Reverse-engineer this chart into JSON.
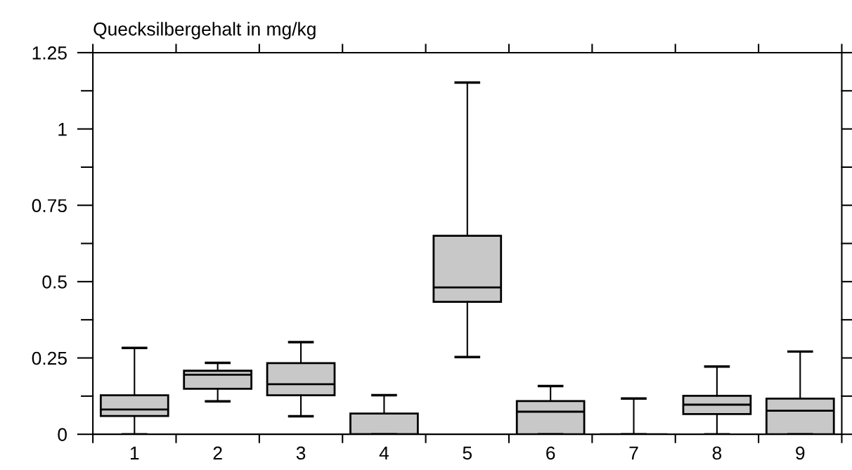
{
  "chart_data": {
    "type": "box",
    "ylabel": "Quecksilbergehalt in mg/kg",
    "categories": [
      "1",
      "2",
      "3",
      "4",
      "5",
      "6",
      "7",
      "8",
      "9"
    ],
    "boxes": [
      {
        "low": 0,
        "q1": 0.06,
        "median": 0.081,
        "q3": 0.128,
        "high": 0.283
      },
      {
        "low": 0.108,
        "q1": 0.149,
        "median": 0.195,
        "q3": 0.208,
        "high": 0.234
      },
      {
        "low": 0.059,
        "q1": 0.128,
        "median": 0.164,
        "q3": 0.233,
        "high": 0.302
      },
      {
        "low": 0,
        "q1": 0,
        "median": 0,
        "q3": 0.068,
        "high": 0.128
      },
      {
        "low": 0.253,
        "q1": 0.434,
        "median": 0.481,
        "q3": 0.65,
        "high": 1.152
      },
      {
        "low": 0,
        "q1": 0,
        "median": 0.074,
        "q3": 0.109,
        "high": 0.158
      },
      {
        "low": 0,
        "q1": 0,
        "median": 0,
        "q3": 0,
        "high": 0.117
      },
      {
        "low": 0,
        "q1": 0.066,
        "median": 0.097,
        "q3": 0.126,
        "high": 0.222
      },
      {
        "low": 0,
        "q1": 0,
        "median": 0.077,
        "q3": 0.117,
        "high": 0.271
      }
    ],
    "color": "#c8c8c8",
    "ylim": [
      0,
      1.25
    ],
    "yticks": [
      0,
      {
        "value": 0.125,
        "label": null
      },
      0.25,
      {
        "value": 0.375,
        "label": null
      },
      0.5,
      {
        "value": 0.625,
        "label": null
      },
      0.75,
      {
        "value": 0.875,
        "label": null
      },
      1,
      {
        "value": 1.125,
        "label": null
      },
      1.25
    ],
    "grid": false
  }
}
